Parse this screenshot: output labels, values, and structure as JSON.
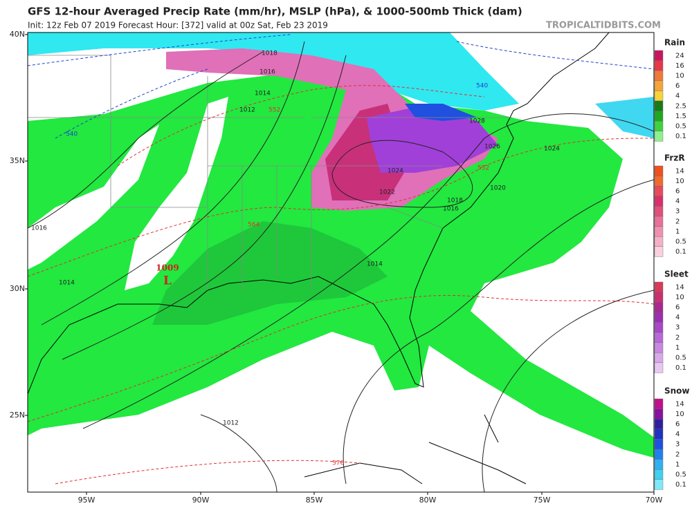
{
  "header": {
    "title": "GFS 12-hour Averaged Precip Rate (mm/hr), MSLP (hPa), & 1000-500mb Thick (dam)",
    "subtitle": "Init: 12z Feb 07 2019   Forecast Hour: [372]   valid at 00z Sat, Feb 23 2019",
    "site": "TROPICALTIDBITS.COM"
  },
  "axes": {
    "lat_labels": [
      "40N",
      "35N",
      "30N",
      "25N"
    ],
    "lon_labels": [
      "95W",
      "90W",
      "85W",
      "80W",
      "75W",
      "70W"
    ]
  },
  "map": {
    "low_pressure": "1009",
    "low_symbol": "L",
    "contour_labels": [
      "1018",
      "1016",
      "1014",
      "1012",
      "552",
      "540",
      "540",
      "1028",
      "1026",
      "1024",
      "1024",
      "1022",
      "1020",
      "1018",
      "1016",
      "552",
      "1014",
      "1016",
      "1014",
      "1012",
      "576",
      "564"
    ]
  },
  "legend": [
    {
      "title": "Rain",
      "labels": [
        "24",
        "16",
        "10",
        "6",
        "4",
        "2.5",
        "1.5",
        "0.5",
        "0.1"
      ],
      "colors": [
        "#c8155f",
        "#e8364a",
        "#f07a3a",
        "#f5a33a",
        "#f7d23a",
        "#1a7a1a",
        "#1fa81f",
        "#3fd23f",
        "#8ef08e"
      ]
    },
    {
      "title": "FrzR",
      "labels": [
        "14",
        "10",
        "6",
        "4",
        "3",
        "2",
        "1",
        "0.5",
        "0.1"
      ],
      "colors": [
        "#f05020",
        "#f06a30",
        "#e84a5a",
        "#d8306a",
        "#e0507a",
        "#e8709a",
        "#f090b0",
        "#f5b0c8",
        "#fad0e0"
      ]
    },
    {
      "title": "Sleet",
      "labels": [
        "14",
        "10",
        "6",
        "4",
        "3",
        "2",
        "1",
        "0.5",
        "0.1"
      ],
      "colors": [
        "#d83a5a",
        "#c83070",
        "#a82890",
        "#9a30b0",
        "#a848c8",
        "#b868d8",
        "#c888e0",
        "#d8a8ea",
        "#e8c8f2"
      ]
    },
    {
      "title": "Snow",
      "labels": [
        "14",
        "10",
        "6",
        "4",
        "3",
        "2",
        "1",
        "0.5",
        "0.1"
      ],
      "colors": [
        "#c0108a",
        "#8a10a0",
        "#3020a0",
        "#2030c0",
        "#2050e0",
        "#2080f0",
        "#30b0f0",
        "#40d0f0",
        "#80e8f8"
      ]
    }
  ]
}
